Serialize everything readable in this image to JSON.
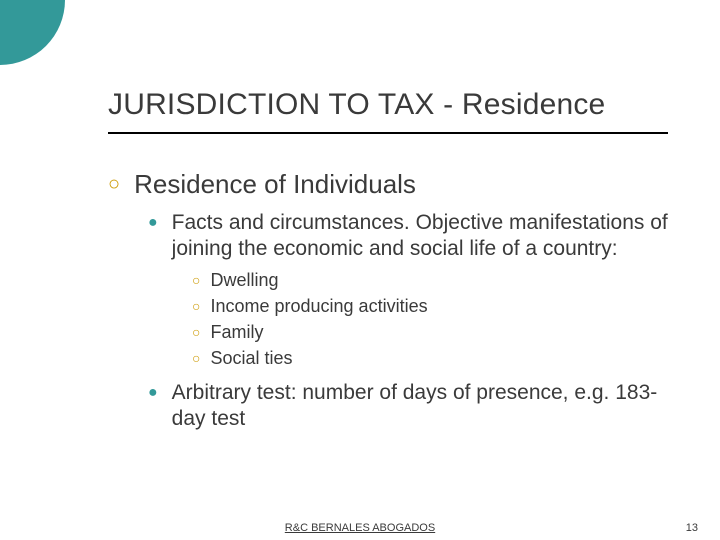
{
  "accent_circle_color": "#339999",
  "title": "JURISDICTION TO TAX - Residence",
  "heading": "Residence of Individuals",
  "bullets_lvl2": [
    {
      "text": "Facts and circumstances. Objective manifestations of joining the economic and social life of a country:",
      "sub": [
        "Dwelling",
        "Income producing activities",
        "Family",
        "Social ties"
      ]
    },
    {
      "text": "Arbitrary test: number of days of presence, e.g. 183-day test",
      "sub": []
    }
  ],
  "footer_center": "R&C BERNALES ABOGADOS",
  "page_number": "13",
  "bullet_colors": {
    "lvl1": "#cc9900",
    "lvl2": "#339999",
    "lvl3": "#cc9900"
  }
}
